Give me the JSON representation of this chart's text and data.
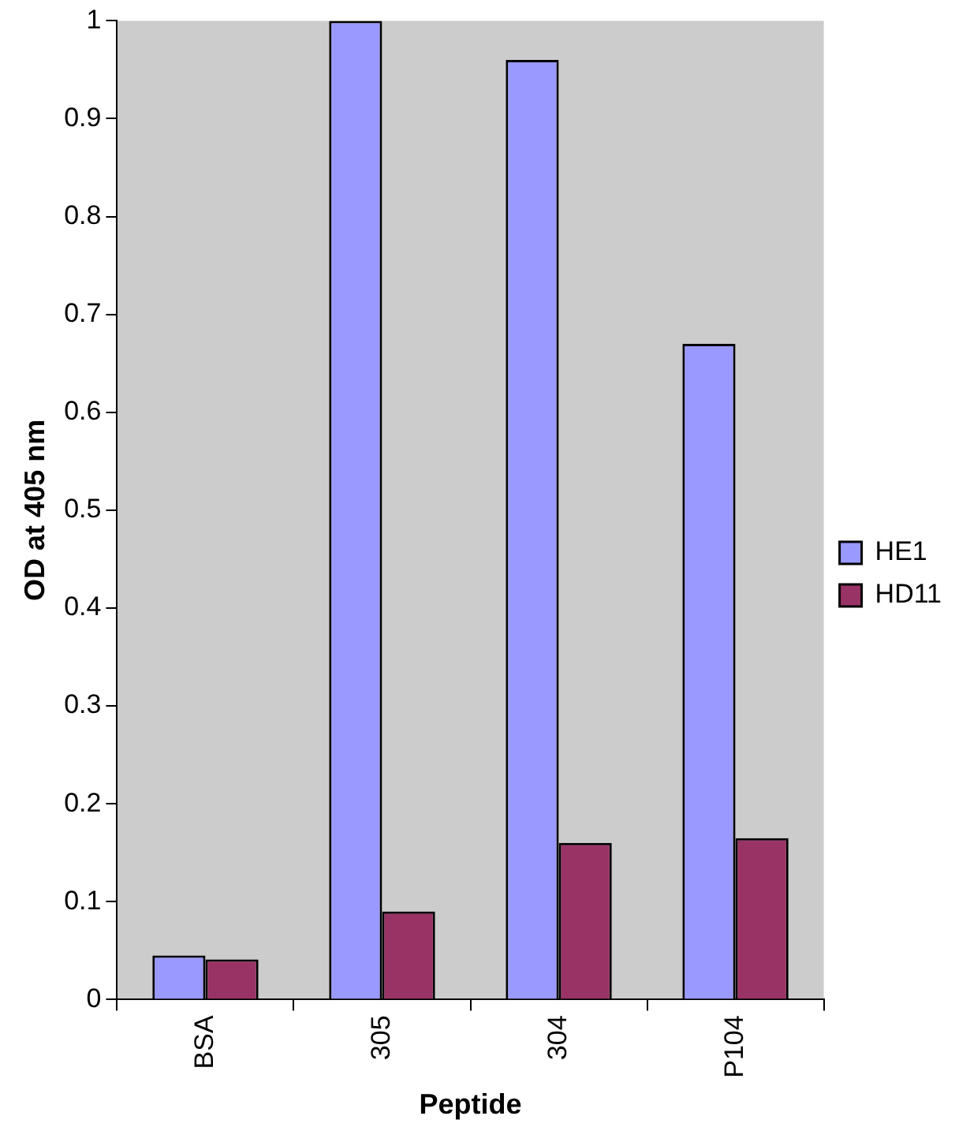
{
  "chart_data": {
    "type": "bar",
    "xlabel": "Peptide",
    "ylabel": "OD at 405 nm",
    "categories": [
      "BSA",
      "305",
      "304",
      "P104"
    ],
    "series": [
      {
        "name": "HE1",
        "color": "#9999ff",
        "values": [
          0.045,
          1.0,
          0.96,
          0.67
        ]
      },
      {
        "name": "HD11",
        "color": "#993366",
        "values": [
          0.041,
          0.09,
          0.16,
          0.165
        ]
      }
    ],
    "ylim": [
      0,
      1
    ],
    "yticks": [
      0,
      0.1,
      0.2,
      0.3,
      0.4,
      0.5,
      0.6,
      0.7,
      0.8,
      0.9,
      1
    ],
    "grid": false,
    "legend": "right"
  }
}
